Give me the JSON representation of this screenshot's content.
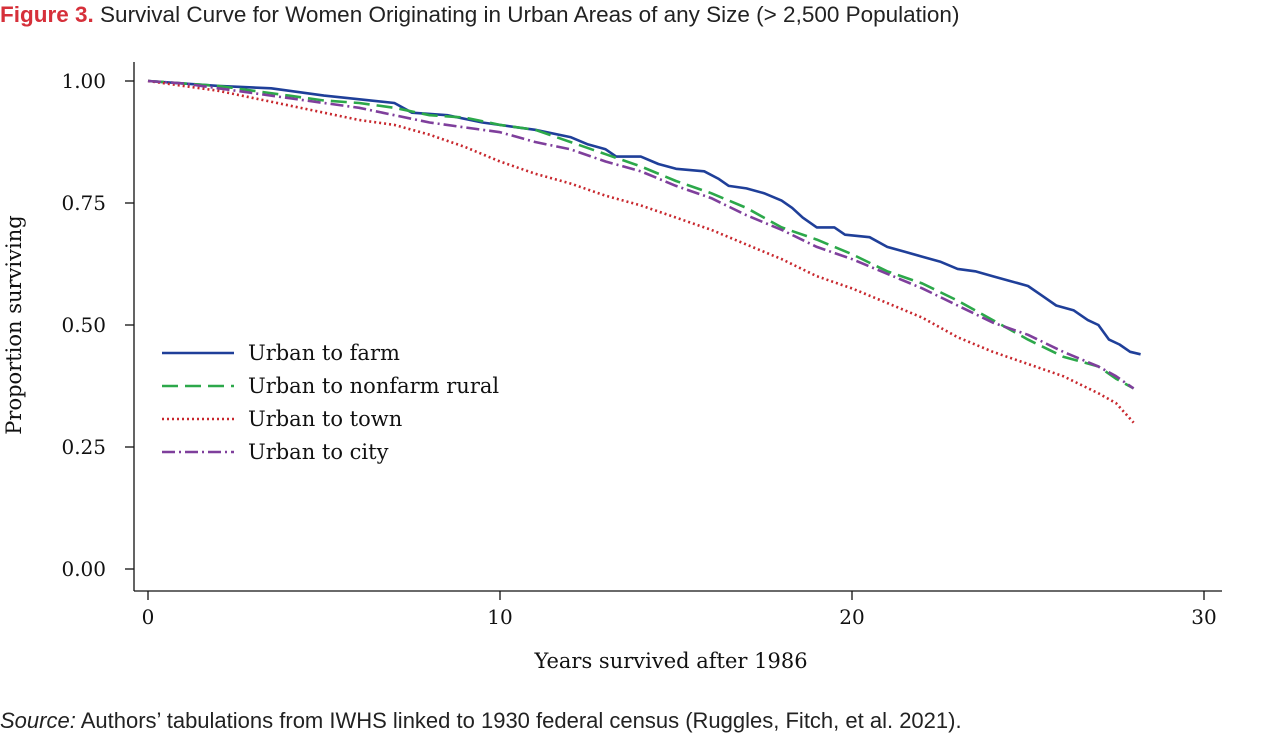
{
  "figure": {
    "label": "Figure 3.",
    "title": "Survival Curve for Women Originating in Urban Areas of any Size (> 2,500 Population)"
  },
  "source": {
    "label": "Source:",
    "text": " Authors’ tabulations from IWHS linked to 1930 federal census (Ruggles, Fitch, et al. 2021)."
  },
  "chart_data": {
    "type": "line",
    "title": "",
    "xlabel": "Years survived after 1986",
    "ylabel": "Proportion surviving",
    "xlim": [
      0,
      30
    ],
    "ylim": [
      0,
      1
    ],
    "xticks": [
      0,
      10,
      20,
      30
    ],
    "yticks": [
      0,
      0.25,
      0.5,
      0.75,
      1.0
    ],
    "xtick_labels": [
      "0",
      "10",
      "20",
      "30"
    ],
    "ytick_labels": [
      "0.00",
      "0.25",
      "0.50",
      "0.75",
      "1.00"
    ],
    "grid": false,
    "legend_position": "left-middle",
    "series": [
      {
        "name": "Urban to farm",
        "color": "#1f3f99",
        "dash": "solid",
        "points": [
          [
            0,
            1.0
          ],
          [
            2,
            0.99
          ],
          [
            3.5,
            0.985
          ],
          [
            5,
            0.97
          ],
          [
            7,
            0.955
          ],
          [
            7.5,
            0.935
          ],
          [
            8.5,
            0.93
          ],
          [
            9.5,
            0.915
          ],
          [
            10.5,
            0.905
          ],
          [
            11,
            0.9
          ],
          [
            12,
            0.885
          ],
          [
            12.5,
            0.87
          ],
          [
            13,
            0.86
          ],
          [
            13.3,
            0.845
          ],
          [
            14,
            0.845
          ],
          [
            14.5,
            0.83
          ],
          [
            15,
            0.82
          ],
          [
            15.8,
            0.815
          ],
          [
            16.2,
            0.8
          ],
          [
            16.5,
            0.785
          ],
          [
            17,
            0.78
          ],
          [
            17.5,
            0.77
          ],
          [
            18,
            0.755
          ],
          [
            18.3,
            0.74
          ],
          [
            18.6,
            0.72
          ],
          [
            19,
            0.7
          ],
          [
            19.5,
            0.7
          ],
          [
            19.8,
            0.685
          ],
          [
            20.5,
            0.68
          ],
          [
            21,
            0.66
          ],
          [
            21.5,
            0.65
          ],
          [
            22,
            0.64
          ],
          [
            22.5,
            0.63
          ],
          [
            23,
            0.615
          ],
          [
            23.5,
            0.61
          ],
          [
            24,
            0.6
          ],
          [
            24.5,
            0.59
          ],
          [
            25,
            0.58
          ],
          [
            25.4,
            0.56
          ],
          [
            25.8,
            0.54
          ],
          [
            26.3,
            0.53
          ],
          [
            26.7,
            0.51
          ],
          [
            27,
            0.5
          ],
          [
            27.3,
            0.47
          ],
          [
            27.6,
            0.46
          ],
          [
            27.9,
            0.445
          ],
          [
            28.2,
            0.44
          ]
        ]
      },
      {
        "name": "Urban to nonfarm rural",
        "color": "#2ca84a",
        "dash": "long-dash",
        "points": [
          [
            0,
            1.0
          ],
          [
            1,
            0.995
          ],
          [
            2,
            0.99
          ],
          [
            3,
            0.98
          ],
          [
            4,
            0.97
          ],
          [
            5,
            0.96
          ],
          [
            6,
            0.955
          ],
          [
            7,
            0.945
          ],
          [
            8,
            0.93
          ],
          [
            9,
            0.925
          ],
          [
            10,
            0.91
          ],
          [
            11,
            0.9
          ],
          [
            12,
            0.875
          ],
          [
            13,
            0.85
          ],
          [
            14,
            0.825
          ],
          [
            15,
            0.795
          ],
          [
            16,
            0.77
          ],
          [
            17,
            0.74
          ],
          [
            18,
            0.7
          ],
          [
            19,
            0.675
          ],
          [
            20,
            0.645
          ],
          [
            21,
            0.61
          ],
          [
            22,
            0.585
          ],
          [
            23,
            0.55
          ],
          [
            24,
            0.51
          ],
          [
            25,
            0.47
          ],
          [
            26,
            0.435
          ],
          [
            27,
            0.415
          ],
          [
            27.5,
            0.39
          ],
          [
            28,
            0.37
          ]
        ]
      },
      {
        "name": "Urban to town",
        "color": "#c8282e",
        "dash": "dotted",
        "points": [
          [
            0,
            1.0
          ],
          [
            1,
            0.99
          ],
          [
            2,
            0.98
          ],
          [
            3,
            0.965
          ],
          [
            4,
            0.95
          ],
          [
            5,
            0.935
          ],
          [
            6,
            0.92
          ],
          [
            7,
            0.91
          ],
          [
            8,
            0.89
          ],
          [
            9,
            0.865
          ],
          [
            10,
            0.835
          ],
          [
            11,
            0.81
          ],
          [
            12,
            0.79
          ],
          [
            13,
            0.765
          ],
          [
            14,
            0.745
          ],
          [
            15,
            0.72
          ],
          [
            16,
            0.695
          ],
          [
            17,
            0.665
          ],
          [
            18,
            0.635
          ],
          [
            19,
            0.6
          ],
          [
            20,
            0.575
          ],
          [
            21,
            0.545
          ],
          [
            22,
            0.515
          ],
          [
            23,
            0.475
          ],
          [
            24,
            0.445
          ],
          [
            25,
            0.42
          ],
          [
            26,
            0.395
          ],
          [
            27,
            0.36
          ],
          [
            27.5,
            0.34
          ],
          [
            28,
            0.3
          ]
        ]
      },
      {
        "name": "Urban to city",
        "color": "#7f3f9c",
        "dash": "dash-dot",
        "points": [
          [
            0,
            1.0
          ],
          [
            1,
            0.995
          ],
          [
            2,
            0.985
          ],
          [
            3,
            0.975
          ],
          [
            4,
            0.965
          ],
          [
            5,
            0.955
          ],
          [
            6,
            0.945
          ],
          [
            7,
            0.93
          ],
          [
            8,
            0.915
          ],
          [
            9,
            0.905
          ],
          [
            10,
            0.895
          ],
          [
            11,
            0.875
          ],
          [
            12,
            0.86
          ],
          [
            13,
            0.835
          ],
          [
            14,
            0.815
          ],
          [
            15,
            0.785
          ],
          [
            16,
            0.76
          ],
          [
            17,
            0.725
          ],
          [
            18,
            0.695
          ],
          [
            19,
            0.66
          ],
          [
            20,
            0.635
          ],
          [
            21,
            0.605
          ],
          [
            22,
            0.575
          ],
          [
            23,
            0.54
          ],
          [
            24,
            0.505
          ],
          [
            25,
            0.48
          ],
          [
            26,
            0.445
          ],
          [
            27,
            0.415
          ],
          [
            27.5,
            0.395
          ],
          [
            28,
            0.37
          ]
        ]
      }
    ]
  }
}
